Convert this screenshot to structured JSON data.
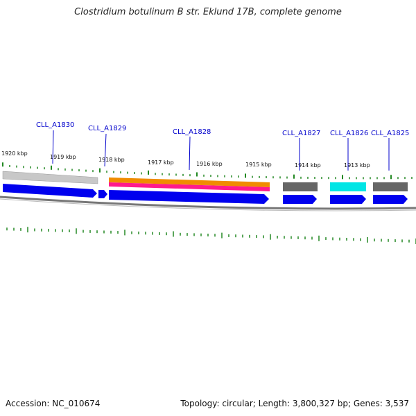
{
  "title": "Clostridium botulinum B str. Eklund 17B, complete genome",
  "accession": "Accession: NC_010674",
  "summary": "Topology: circular; Length: 3,800,327 bp; Genes: 3,537",
  "genes": [
    {
      "label": "CLL_A1830",
      "color": "#0000cc"
    },
    {
      "label": "CLL_A1829",
      "color": "#0000cc"
    },
    {
      "label": "CLL_A1828",
      "color": "#0000cc"
    },
    {
      "label": "CLL_A1827",
      "color": "#0000cc"
    },
    {
      "label": "CLL_A1826",
      "color": "#0000cc"
    },
    {
      "label": "CLL_A1825",
      "color": "#0000cc"
    }
  ],
  "scale_labels": [
    "1920 kbp",
    "1919 kbp",
    "1918 kbp",
    "1917 kbp",
    "1916 kbp",
    "1915 kbp",
    "1914 kbp",
    "1913 kbp"
  ],
  "colors": {
    "gene": "#0000ee",
    "cds_gray": "#c8c8c8",
    "cds_dark": "#666666",
    "cds_orange": "#f08c00",
    "cds_pink": "#ff1a8c",
    "cds_cyan": "#00e5e5",
    "backbone": "#777777",
    "tick": "#228822",
    "label": "#0000cc"
  }
}
